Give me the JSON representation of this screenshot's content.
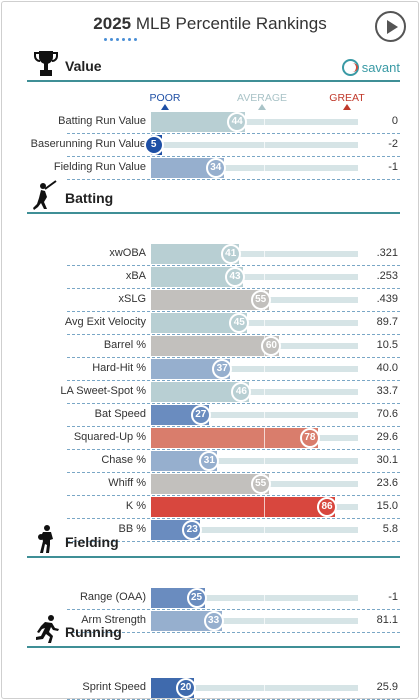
{
  "header": {
    "year": "2025",
    "title": "MLB Percentile Rankings"
  },
  "brand": "savant",
  "legend": {
    "poor": "POOR",
    "average": "AVERAGE",
    "great": "GREAT"
  },
  "colors": {
    "accent": "#3f8f96",
    "poor": "#1e4fa5",
    "average": "#b8cfd3",
    "great": "#d8473e"
  },
  "sections": [
    {
      "name": "Value",
      "icon": "trophy-icon",
      "rows": [
        {
          "metric": "Batting Run Value",
          "percentile": 44,
          "value": "0"
        },
        {
          "metric": "Baserunning Run Value",
          "percentile": 5,
          "value": "-2"
        },
        {
          "metric": "Fielding Run Value",
          "percentile": 34,
          "value": "-1"
        }
      ]
    },
    {
      "name": "Batting",
      "icon": "batter-icon",
      "rows": [
        {
          "metric": "xwOBA",
          "percentile": 41,
          "value": ".321"
        },
        {
          "metric": "xBA",
          "percentile": 43,
          "value": ".253"
        },
        {
          "metric": "xSLG",
          "percentile": 55,
          "value": ".439"
        },
        {
          "metric": "Avg Exit Velocity",
          "percentile": 45,
          "value": "89.7"
        },
        {
          "metric": "Barrel %",
          "percentile": 60,
          "value": "10.5"
        },
        {
          "metric": "Hard-Hit %",
          "percentile": 37,
          "value": "40.0"
        },
        {
          "metric": "LA Sweet-Spot %",
          "percentile": 46,
          "value": "33.7"
        },
        {
          "metric": "Bat Speed",
          "percentile": 27,
          "value": "70.6"
        },
        {
          "metric": "Squared-Up %",
          "percentile": 78,
          "value": "29.6"
        },
        {
          "metric": "Chase %",
          "percentile": 31,
          "value": "30.1"
        },
        {
          "metric": "Whiff %",
          "percentile": 55,
          "value": "23.6"
        },
        {
          "metric": "K %",
          "percentile": 86,
          "value": "15.0"
        },
        {
          "metric": "BB %",
          "percentile": 23,
          "value": "5.8"
        }
      ]
    },
    {
      "name": "Fielding",
      "icon": "fielder-icon",
      "rows": [
        {
          "metric": "Range (OAA)",
          "percentile": 25,
          "value": "-1"
        },
        {
          "metric": "Arm Strength",
          "percentile": 33,
          "value": "81.1"
        }
      ]
    },
    {
      "name": "Running",
      "icon": "runner-icon",
      "rows": [
        {
          "metric": "Sprint Speed",
          "percentile": 20,
          "value": "25.9"
        }
      ]
    }
  ]
}
